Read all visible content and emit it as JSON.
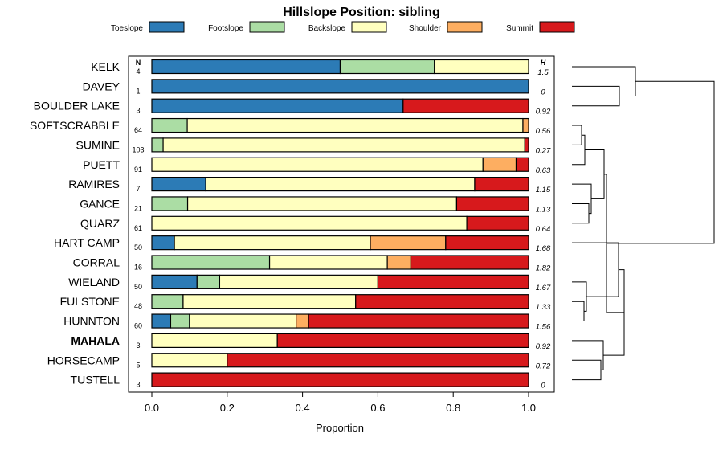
{
  "chart_data": {
    "type": "bar",
    "orientation": "horizontal",
    "stacked": true,
    "title": "Hillslope Position: sibling",
    "xlabel": "Proportion",
    "ylabel": "",
    "xlim": [
      0,
      1
    ],
    "xticks": [
      "0.0",
      "0.2",
      "0.4",
      "0.6",
      "0.8",
      "1.0"
    ],
    "n_header": "N",
    "h_header": "H",
    "legend": [
      {
        "name": "Toeslope",
        "color": "#2c7bb6"
      },
      {
        "name": "Footslope",
        "color": "#abdda4"
      },
      {
        "name": "Backslope",
        "color": "#ffffbf"
      },
      {
        "name": "Shoulder",
        "color": "#fdae61"
      },
      {
        "name": "Summit",
        "color": "#d7191c"
      }
    ],
    "rows": [
      {
        "name": "KELK",
        "n": "4",
        "h": "1.5",
        "bold": false,
        "values": [
          0.5,
          0.25,
          0.25,
          0,
          0
        ]
      },
      {
        "name": "DAVEY",
        "n": "1",
        "h": "0",
        "bold": false,
        "values": [
          1.0,
          0,
          0,
          0,
          0
        ]
      },
      {
        "name": "BOULDER LAKE",
        "n": "3",
        "h": "0.92",
        "bold": false,
        "values": [
          0.667,
          0,
          0,
          0,
          0.333
        ]
      },
      {
        "name": "SOFTSCRABBLE",
        "n": "64",
        "h": "0.56",
        "bold": false,
        "values": [
          0,
          0.094,
          0.891,
          0.015,
          0
        ]
      },
      {
        "name": "SUMINE",
        "n": "103",
        "h": "0.27",
        "bold": false,
        "values": [
          0,
          0.03,
          0.96,
          0,
          0.01
        ]
      },
      {
        "name": "PUETT",
        "n": "91",
        "h": "0.63",
        "bold": false,
        "values": [
          0,
          0,
          0.879,
          0.088,
          0.033
        ]
      },
      {
        "name": "RAMIRES",
        "n": "7",
        "h": "1.15",
        "bold": false,
        "values": [
          0.143,
          0,
          0.714,
          0,
          0.143
        ]
      },
      {
        "name": "GANCE",
        "n": "21",
        "h": "1.13",
        "bold": false,
        "values": [
          0,
          0.095,
          0.714,
          0,
          0.191
        ]
      },
      {
        "name": "QUARZ",
        "n": "61",
        "h": "0.64",
        "bold": false,
        "values": [
          0,
          0,
          0.836,
          0,
          0.164
        ]
      },
      {
        "name": "HART CAMP",
        "n": "50",
        "h": "1.68",
        "bold": false,
        "values": [
          0.06,
          0,
          0.52,
          0.2,
          0.22
        ]
      },
      {
        "name": "CORRAL",
        "n": "16",
        "h": "1.82",
        "bold": false,
        "values": [
          0,
          0.3125,
          0.3125,
          0.0625,
          0.3125
        ]
      },
      {
        "name": "WIELAND",
        "n": "50",
        "h": "1.67",
        "bold": false,
        "values": [
          0.12,
          0.06,
          0.42,
          0,
          0.4
        ]
      },
      {
        "name": "FULSTONE",
        "n": "48",
        "h": "1.33",
        "bold": false,
        "values": [
          0,
          0.083,
          0.458,
          0,
          0.459
        ]
      },
      {
        "name": "HUNNTON",
        "n": "60",
        "h": "1.56",
        "bold": false,
        "values": [
          0.05,
          0.05,
          0.283,
          0.033,
          0.584
        ]
      },
      {
        "name": "MAHALA",
        "n": "3",
        "h": "0.92",
        "bold": true,
        "values": [
          0,
          0,
          0.333,
          0,
          0.667
        ]
      },
      {
        "name": "HORSECAMP",
        "n": "5",
        "h": "0.72",
        "bold": false,
        "values": [
          0,
          0,
          0.2,
          0,
          0.8
        ]
      },
      {
        "name": "TUSTELL",
        "n": "3",
        "h": "0",
        "bold": false,
        "values": [
          0,
          0,
          0,
          0,
          1.0
        ]
      }
    ]
  }
}
